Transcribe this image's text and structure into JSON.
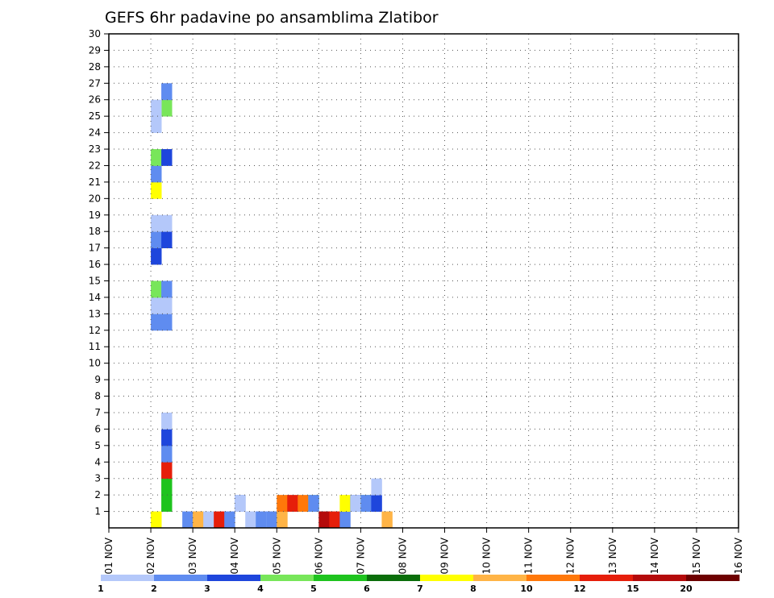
{
  "chart_data": {
    "type": "heatmap",
    "title": "GEFS 6hr padavine po ansamblima Zlatibor",
    "x_tick_labels": [
      "01 NOV",
      "02 NOV",
      "03 NOV",
      "04 NOV",
      "05 NOV",
      "06 NOV",
      "07 NOV",
      "08 NOV",
      "09 NOV",
      "10 NOV",
      "11 NOV",
      "12 NOV",
      "13 NOV",
      "14 NOV",
      "15 NOV",
      "16 NOV"
    ],
    "y_tick_labels": [
      "1",
      "2",
      "3",
      "4",
      "5",
      "6",
      "7",
      "8",
      "9",
      "10",
      "11",
      "12",
      "13",
      "14",
      "15",
      "16",
      "17",
      "18",
      "19",
      "20",
      "21",
      "22",
      "23",
      "24",
      "25",
      "26",
      "27",
      "28",
      "29",
      "30"
    ],
    "x_range": [
      0,
      60
    ],
    "y_range": [
      0,
      30
    ],
    "x_unit": "6-hour step from 01 NOV 00Z",
    "y_unit": "ensemble member",
    "grid": true,
    "colorbar": {
      "labels": [
        "1",
        "2",
        "3",
        "4",
        "5",
        "6",
        "7",
        "8",
        "10",
        "12",
        "15",
        "20"
      ],
      "colors": [
        "#b4c8fa",
        "#5f8cf0",
        "#1e46dc",
        "#78e65a",
        "#1ec31e",
        "#0a6e0a",
        "#ffff00",
        "#ffb446",
        "#ff780a",
        "#e61e0a",
        "#b40a0a",
        "#6e0000"
      ]
    },
    "cells": [
      [
        4,
        0,
        6
      ],
      [
        5,
        1,
        4
      ],
      [
        5,
        2,
        4
      ],
      [
        5,
        3,
        9
      ],
      [
        5,
        4,
        1
      ],
      [
        5,
        5,
        2
      ],
      [
        5,
        6,
        0
      ],
      [
        7,
        0,
        1
      ],
      [
        8,
        0,
        7
      ],
      [
        8,
        0,
        7
      ],
      [
        9,
        0,
        0
      ],
      [
        10,
        0,
        9
      ],
      [
        11,
        0,
        1
      ],
      [
        12,
        1,
        1
      ],
      [
        12,
        1,
        0
      ],
      [
        13,
        0,
        0
      ],
      [
        14,
        0,
        1
      ],
      [
        15,
        0,
        0
      ],
      [
        15,
        0,
        1
      ],
      [
        16,
        0,
        7
      ],
      [
        16,
        1,
        8
      ],
      [
        17,
        1,
        9
      ],
      [
        18,
        1,
        8
      ],
      [
        19,
        1,
        3
      ],
      [
        19,
        1,
        1
      ],
      [
        20,
        0,
        10
      ],
      [
        21,
        0,
        9
      ],
      [
        22,
        0,
        1
      ],
      [
        22,
        1,
        6
      ],
      [
        23,
        1,
        2
      ],
      [
        23,
        1,
        0
      ],
      [
        24,
        1,
        3
      ],
      [
        24,
        1,
        1
      ],
      [
        25,
        1,
        2
      ],
      [
        25,
        2,
        0
      ],
      [
        26,
        0,
        7
      ],
      [
        4,
        12,
        1
      ],
      [
        4,
        13,
        0
      ],
      [
        4,
        14,
        3
      ],
      [
        5,
        12,
        1
      ],
      [
        5,
        13,
        0
      ],
      [
        5,
        14,
        1
      ],
      [
        4,
        16,
        2
      ],
      [
        4,
        17,
        1
      ],
      [
        4,
        18,
        0
      ],
      [
        5,
        17,
        2
      ],
      [
        5,
        18,
        0
      ],
      [
        4,
        20,
        6
      ],
      [
        4,
        21,
        1
      ],
      [
        4,
        22,
        3
      ],
      [
        5,
        22,
        2
      ],
      [
        4,
        24,
        0
      ],
      [
        5,
        25,
        3
      ],
      [
        5,
        26,
        1
      ],
      [
        4,
        25,
        0
      ]
    ]
  }
}
